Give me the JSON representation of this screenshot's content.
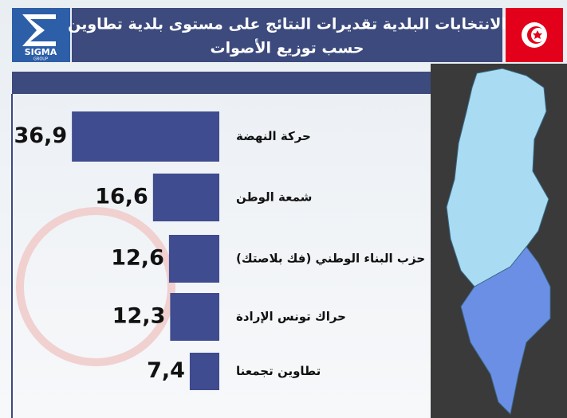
{
  "logo": {
    "name": "SIGMA",
    "sub": "GROUP"
  },
  "chart_data": {
    "type": "bar",
    "orientation": "horizontal",
    "title": "الانتخابات البلدية تقديرات النتائج على مستوى بلدية تطاوين",
    "subtitle": "حسب توزيع الأصوات",
    "categories": [
      "حركة النهضة",
      "شمعة الوطن",
      "حزب البناء الوطني (فك بلاصتك)",
      "حراك تونس الإرادة",
      "تطاوين تجمعنا"
    ],
    "values": [
      36.9,
      16.6,
      12.6,
      12.3,
      7.4
    ],
    "value_labels": [
      "36,9",
      "16,6",
      "12,6",
      "12,3",
      "7,4"
    ],
    "color": "#3f4c8f"
  }
}
